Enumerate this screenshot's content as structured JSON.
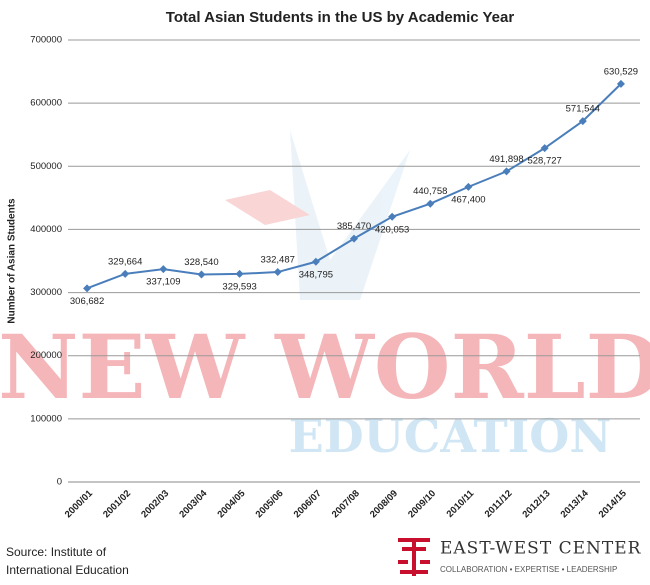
{
  "chart_data": {
    "type": "line",
    "title": "Total Asian Students in the US by Academic Year",
    "y_label": "Number of Asian Students",
    "categories": [
      "2000/01",
      "2001/02",
      "2002/03",
      "2003/04",
      "2004/05",
      "2005/06",
      "2006/07",
      "2007/08",
      "2008/09",
      "2009/10",
      "2010/11",
      "2011/12",
      "2012/13",
      "2013/14",
      "2014/15"
    ],
    "values": [
      306682,
      329664,
      337109,
      328540,
      329593,
      332487,
      348795,
      385470,
      420053,
      440758,
      467400,
      491898,
      528727,
      571544,
      630529
    ],
    "value_labels": [
      "306,682",
      "329,664",
      "337,109",
      "328,540",
      "329,593",
      "332,487",
      "348,795",
      "385,470",
      "420,053",
      "440,758",
      "467,400",
      "491,898",
      "528,727",
      "571,544",
      "630,529"
    ],
    "color": "#4a7ebb",
    "ylim": [
      0,
      700000
    ],
    "yticks": [
      0,
      100000,
      200000,
      300000,
      400000,
      500000,
      600000,
      700000
    ],
    "grid": true
  },
  "watermark": {
    "line1": "NEW WORLD",
    "line2": "EDUCATION"
  },
  "source": [
    "Source: Institute of",
    "International Education"
  ],
  "logo": {
    "name": "EAST-WEST CENTER",
    "tagline": "COLLABORATION • EXPERTISE • LEADERSHIP"
  }
}
